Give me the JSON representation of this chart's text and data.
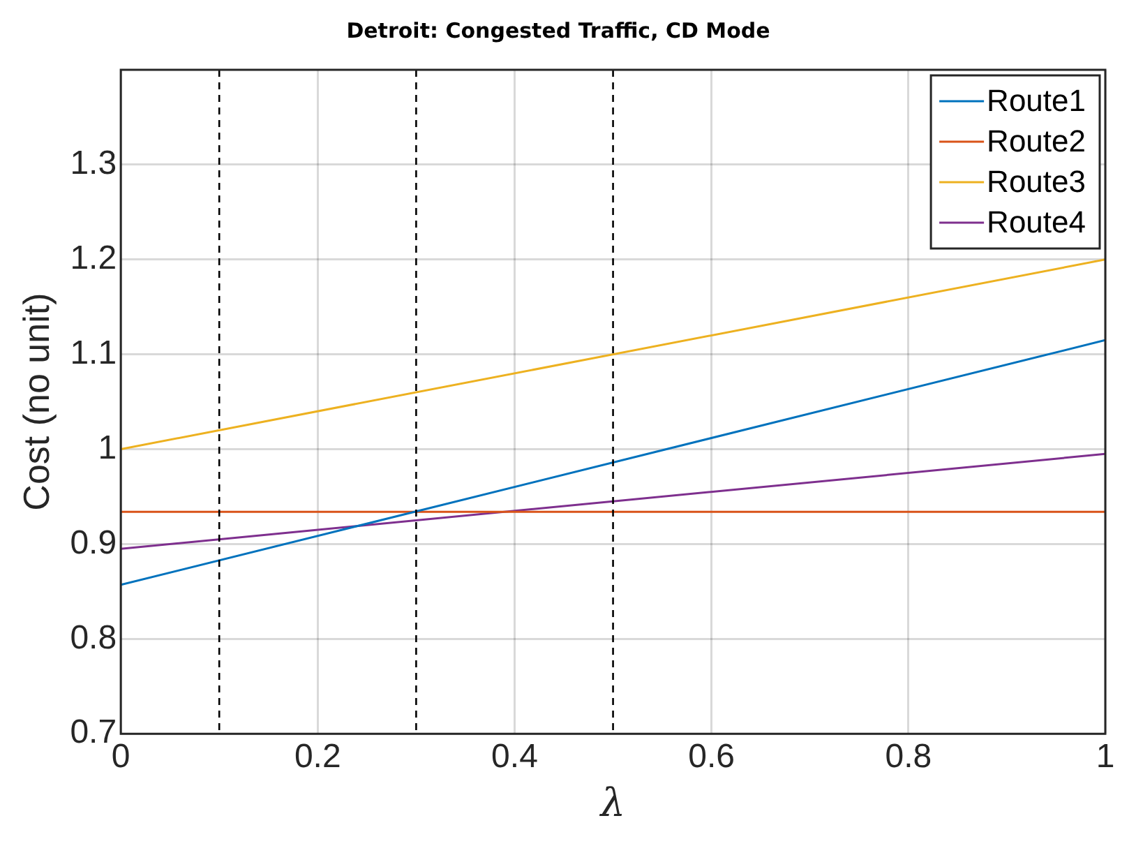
{
  "chart_data": {
    "type": "line",
    "title": "Detroit: Congested Traffic, CD Mode",
    "xlabel": "λ",
    "ylabel": "Cost (no unit)",
    "x": [
      0,
      1
    ],
    "series": [
      {
        "name": "Route1",
        "color": "#0072bd",
        "values": [
          0.857,
          1.115
        ]
      },
      {
        "name": "Route2",
        "color": "#d95319",
        "values": [
          0.934,
          0.934
        ]
      },
      {
        "name": "Route3",
        "color": "#edb120",
        "values": [
          1.0,
          1.2
        ]
      },
      {
        "name": "Route4",
        "color": "#7e2f8e",
        "values": [
          0.895,
          0.995
        ]
      }
    ],
    "xlim": [
      0,
      1
    ],
    "xticks": [
      0,
      0.2,
      0.4,
      0.6,
      0.8,
      1
    ],
    "ylim": [
      0.7,
      1.4
    ],
    "yticks": [
      0.7,
      0.8,
      0.9,
      1,
      1.1,
      1.2,
      1.3
    ],
    "ref_lines": [
      {
        "axis": "x",
        "value": 0.1,
        "color": "#000000",
        "line_style": "dashed"
      },
      {
        "axis": "x",
        "value": 0.3,
        "color": "#000000",
        "line_style": "dashed"
      },
      {
        "axis": "x",
        "value": 0.5,
        "color": "#000000",
        "line_style": "dashed"
      }
    ],
    "grid": true,
    "legend": "top right",
    "marker": "none",
    "line_style": "solid"
  }
}
